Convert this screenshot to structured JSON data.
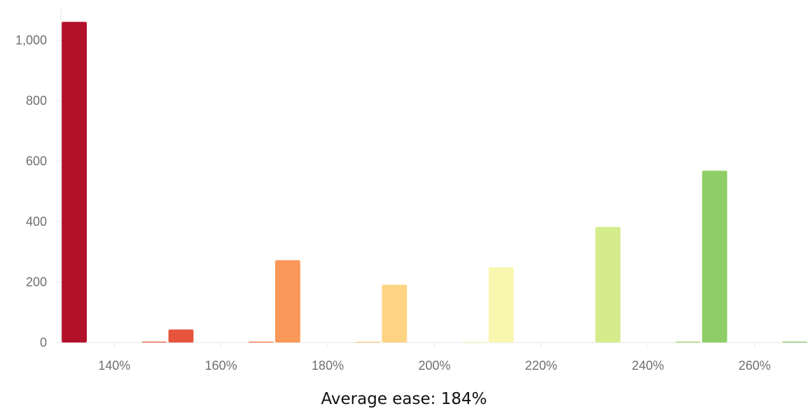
{
  "chart_data": {
    "type": "bar",
    "x_unit": "%",
    "xlim": [
      130,
      270
    ],
    "ylim": [
      0,
      1100
    ],
    "x_ticks": [
      140,
      160,
      180,
      200,
      220,
      240,
      260
    ],
    "x_tick_labels": [
      "140%",
      "160%",
      "180%",
      "200%",
      "220%",
      "240%",
      "260%"
    ],
    "y_ticks": [
      0,
      200,
      400,
      600,
      800,
      1000
    ],
    "y_tick_labels": [
      "0",
      "200",
      "400",
      "600",
      "800",
      "1,000"
    ],
    "grid": false,
    "bins": [
      {
        "x": 132.5,
        "value": 1060,
        "color": "#b2112a"
      },
      {
        "x": 147.5,
        "value": 3,
        "color": "#e8593c"
      },
      {
        "x": 152.5,
        "value": 43,
        "color": "#e6553b"
      },
      {
        "x": 167.5,
        "value": 3,
        "color": "#f46d43"
      },
      {
        "x": 172.5,
        "value": 272,
        "color": "#f99858"
      },
      {
        "x": 187.5,
        "value": 1,
        "color": "#fdbe6e"
      },
      {
        "x": 192.5,
        "value": 191,
        "color": "#fed484"
      },
      {
        "x": 207.5,
        "value": 1,
        "color": "#f5f7b0"
      },
      {
        "x": 212.5,
        "value": 249,
        "color": "#f9f6b0"
      },
      {
        "x": 232.5,
        "value": 382,
        "color": "#d4ec8b"
      },
      {
        "x": 247.5,
        "value": 3,
        "color": "#9ed36d"
      },
      {
        "x": 252.5,
        "value": 568,
        "color": "#8fce67"
      },
      {
        "x": 267.5,
        "value": 3,
        "color": "#7fc462"
      }
    ]
  },
  "footer": {
    "label": "Average ease:",
    "value": "184%"
  }
}
